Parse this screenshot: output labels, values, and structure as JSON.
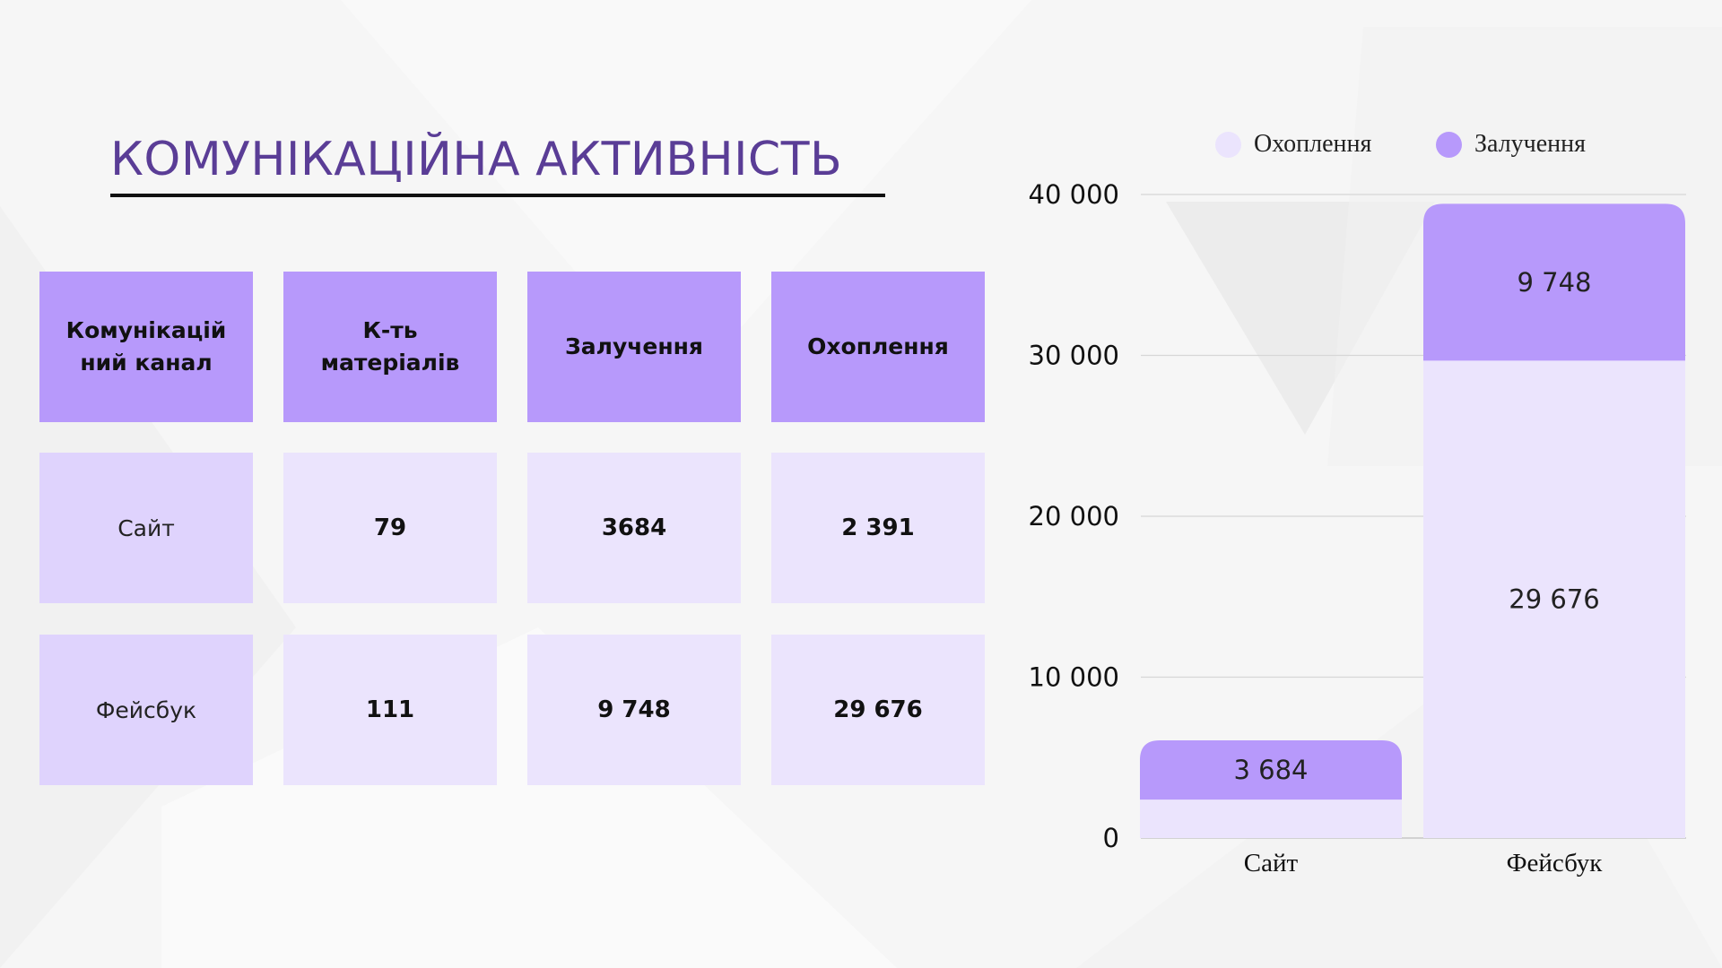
{
  "page": {
    "title": "КОМУНІКАЦІЙНА АКТИВНІСТЬ"
  },
  "table": {
    "headers": [
      "Комунікацій ний канал",
      "К-ть матеріалів",
      "Залучення",
      "Охоплення"
    ],
    "rows": [
      {
        "channel": "Сайт",
        "materials": "79",
        "engagement": "3684",
        "reach": "2 391"
      },
      {
        "channel": "Фейсбук",
        "materials": "111",
        "engagement": "9 748",
        "reach": "29 676"
      }
    ]
  },
  "colors": {
    "title": "#5a3d96",
    "header_cell": "#b799fb",
    "label_cell": "#dfd3fd",
    "value_cell": "#ebe4fd",
    "engagement": "#b799fb",
    "reach": "#ebe4fd"
  },
  "chart_data": {
    "type": "bar",
    "stacked": true,
    "categories": [
      "Сайт",
      "Фейсбук"
    ],
    "series": [
      {
        "name": "Охоплення",
        "values": [
          2391,
          29676
        ],
        "labels": [
          "",
          "29 676"
        ],
        "color": "#ebe4fd"
      },
      {
        "name": "Залучення",
        "values": [
          3684,
          9748
        ],
        "labels": [
          "3 684",
          "9 748"
        ],
        "color": "#b799fb"
      }
    ],
    "ylim": [
      0,
      40000
    ],
    "yticks": [
      0,
      10000,
      20000,
      30000,
      40000
    ],
    "ytick_labels": [
      "0",
      "10 000",
      "20 000",
      "30 000",
      "40 000"
    ],
    "grid": true,
    "legend_position": "top"
  }
}
